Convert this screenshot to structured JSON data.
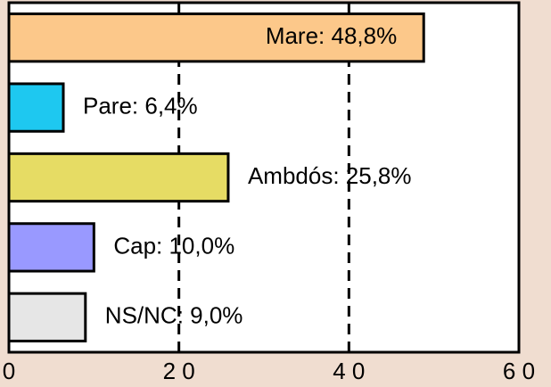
{
  "chart_data": {
    "type": "bar",
    "orientation": "horizontal",
    "values": [
      48.8,
      6.4,
      25.8,
      10.0,
      9.0
    ],
    "value_labels": [
      "Mare: 48,8%",
      "Pare: 6,4%",
      "Ambdós: 25,8%",
      "Cap: 10,0%",
      "NS/NC: 9,0%"
    ],
    "colors": [
      "#fcc88a",
      "#1ec8f0",
      "#e6dc64",
      "#9999ff",
      "#e6e6e6"
    ],
    "xlim": [
      0,
      60
    ],
    "xticks": [
      0,
      {
        "value": 20,
        "label": "2 0"
      },
      {
        "value": 40,
        "label": "4 0"
      },
      {
        "value": 60,
        "label": "6 0"
      }
    ],
    "grid": true
  }
}
